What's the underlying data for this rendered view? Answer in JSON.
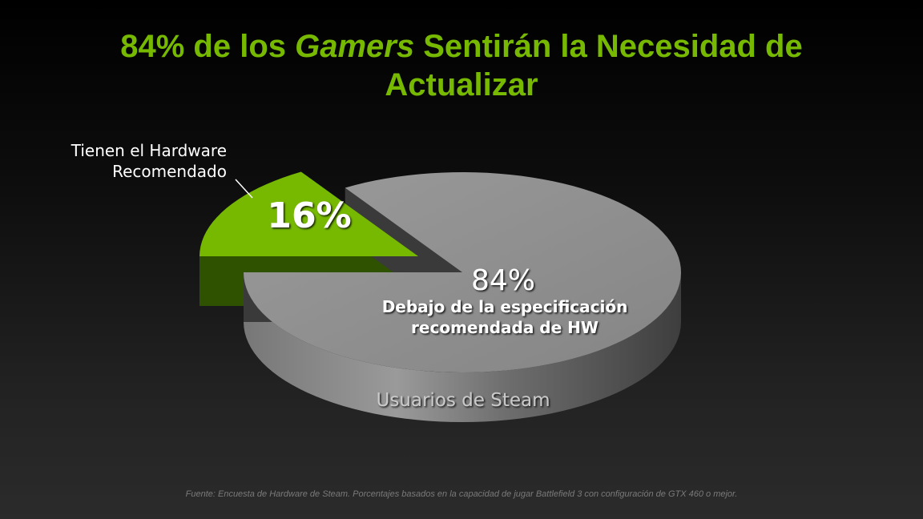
{
  "title": {
    "line1_before": "84% de los ",
    "line1_emph": "Gamers",
    "line1_after": " Sentirán la Necesidad de",
    "line2": "Actualizar"
  },
  "chart_data": {
    "type": "pie",
    "title": "84% de los Gamers Sentirán la Necesidad de Actualizar",
    "series_label": "Usuarios de Steam",
    "slices": [
      {
        "label": "Tienen el Hardware Recomendado",
        "label_lines": [
          "Tienen el Hardware",
          "Recomendado"
        ],
        "value": 16,
        "display": "16%",
        "color": "#76b900",
        "exploded": true
      },
      {
        "label": "Debajo de la especificación recomendada de HW",
        "label_lines": [
          "Debajo de la especificación",
          "recomendada de HW"
        ],
        "value": 84,
        "display": "84%",
        "color": "#8c8c8c",
        "exploded": false
      }
    ]
  },
  "footnote": "Fuente:  Encuesta de Hardware  de Steam.  Porcentajes basados en la capacidad de jugar Battlefield 3 con configuración  de GTX 460 o mejor."
}
